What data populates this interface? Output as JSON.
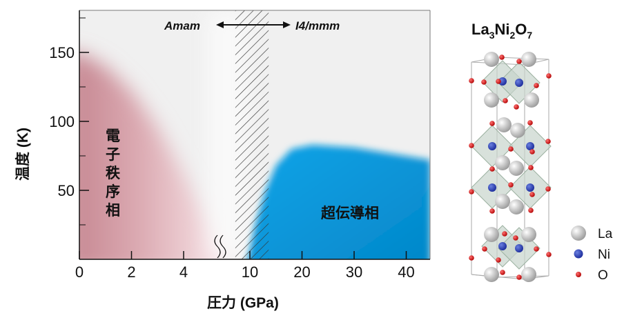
{
  "chart_data": {
    "type": "area",
    "title": "",
    "xlabel": "圧力 (GPa)",
    "ylabel": "温度 (K)",
    "x_axis": {
      "segments": [
        [
          0,
          5
        ],
        [
          8,
          42
        ]
      ],
      "break": true,
      "ticks": [
        0,
        2,
        4,
        10,
        20,
        30,
        40
      ],
      "tick_labels": [
        "0",
        "2",
        "4",
        "10",
        "20",
        "30",
        "40"
      ]
    },
    "y_axis": {
      "range": [
        0,
        180
      ],
      "ticks": [
        50,
        100,
        150
      ],
      "tick_labels": [
        "50",
        "100",
        "150"
      ],
      "minor_ticks": [
        25,
        75,
        125,
        175
      ]
    },
    "series": [
      {
        "name": "電子秩序相",
        "color": "#c98a94",
        "boundary": [
          [
            0,
            150
          ],
          [
            1,
            140
          ],
          [
            2,
            122
          ],
          [
            3,
            96
          ],
          [
            4,
            62
          ],
          [
            5,
            25
          ],
          [
            5.6,
            0
          ]
        ]
      },
      {
        "name": "超伝導相",
        "color": "#0a9be0",
        "boundary": [
          [
            9,
            0
          ],
          [
            11,
            25
          ],
          [
            13,
            50
          ],
          [
            15,
            68
          ],
          [
            18,
            80
          ],
          [
            22,
            83
          ],
          [
            30,
            81
          ],
          [
            38,
            76
          ],
          [
            42,
            72
          ],
          [
            42,
            0
          ]
        ]
      }
    ],
    "hatched_region": {
      "x": [
        7.2,
        13.6
      ],
      "meaning": "structural transition"
    },
    "annotations": {
      "low_pressure_phase": "Amam",
      "high_pressure_phase": "I4/mmm"
    }
  },
  "structure": {
    "formula_main": [
      "La",
      "3",
      "Ni",
      "2",
      "O",
      "7"
    ],
    "legend": [
      {
        "label": "La",
        "color": "#c8c8c8"
      },
      {
        "label": "Ni",
        "color": "#2535c0"
      },
      {
        "label": "O",
        "color": "#e02020"
      }
    ]
  }
}
